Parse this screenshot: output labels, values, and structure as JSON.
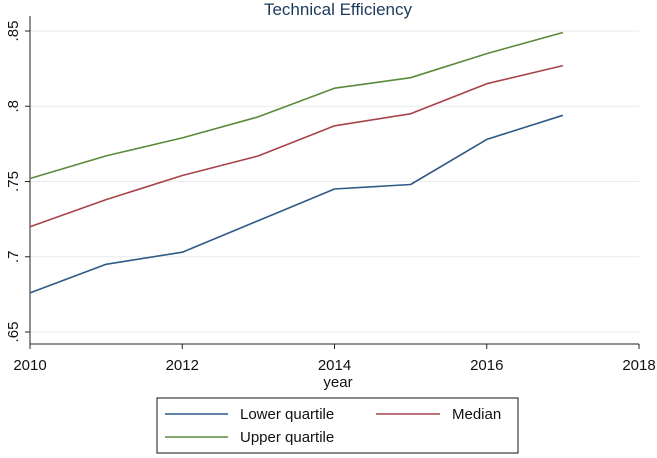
{
  "chart_data": {
    "type": "line",
    "title": "Technical Efficiency",
    "xlabel": "year",
    "ylabel": "",
    "xlim": [
      2010,
      2018
    ],
    "ylim": [
      0.65,
      0.85
    ],
    "x_ticks": [
      2010,
      2012,
      2014,
      2016,
      2018
    ],
    "x_tick_labels": [
      "2010",
      "2012",
      "2014",
      "2016",
      "2018"
    ],
    "y_ticks": [
      0.65,
      0.7,
      0.75,
      0.8,
      0.85
    ],
    "y_tick_labels": [
      ".65",
      ".7",
      ".75",
      ".8",
      ".85"
    ],
    "grid": true,
    "legend_position": "bottom",
    "x": [
      2010,
      2011,
      2012,
      2013,
      2014,
      2015,
      2016,
      2017
    ],
    "series": [
      {
        "name": "Lower quartile",
        "color": "#2e5a87",
        "values": [
          0.676,
          0.695,
          0.703,
          0.724,
          0.745,
          0.748,
          0.778,
          0.794
        ]
      },
      {
        "name": "Median",
        "color": "#a8434a",
        "values": [
          0.72,
          0.738,
          0.754,
          0.767,
          0.787,
          0.795,
          0.815,
          0.827
        ]
      },
      {
        "name": "Upper quartile",
        "color": "#5a8a3a",
        "values": [
          0.752,
          0.767,
          0.779,
          0.793,
          0.812,
          0.819,
          0.835,
          0.849
        ]
      }
    ]
  }
}
